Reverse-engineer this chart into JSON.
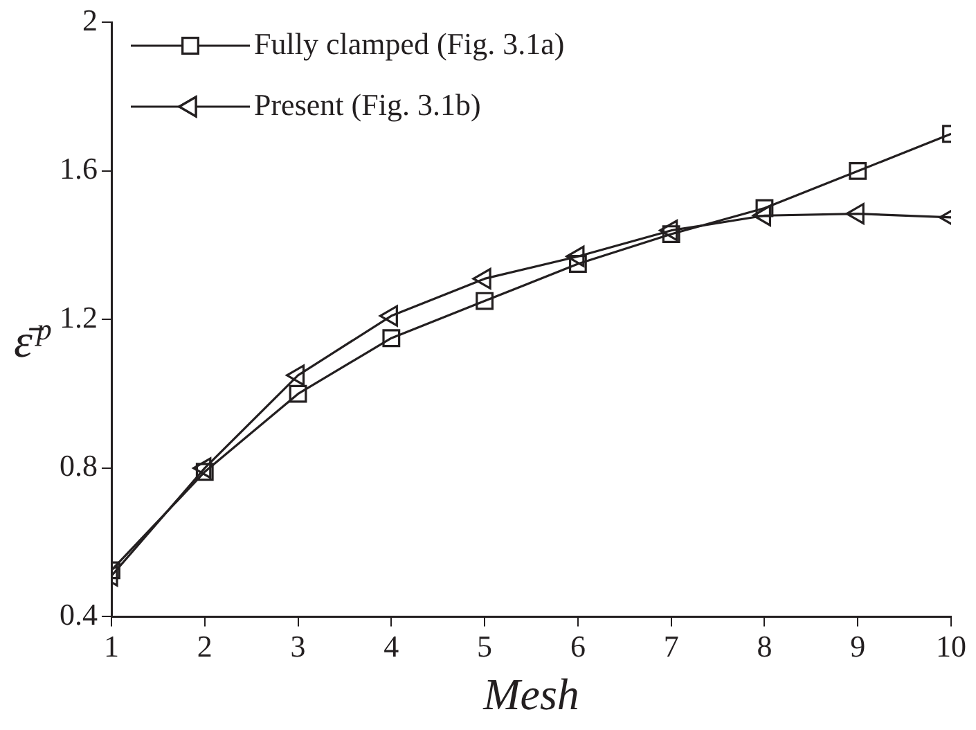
{
  "chart_data": {
    "type": "line",
    "xlabel": "Mesh",
    "ylabel": "ε̄$^{p}$",
    "x": [
      1,
      2,
      3,
      4,
      5,
      6,
      7,
      8,
      9,
      10
    ],
    "series": [
      {
        "name": "Fully clamped (Fig. 3.1a)",
        "color": "#231f20",
        "marker": "square",
        "values": [
          0.525,
          0.79,
          1.0,
          1.15,
          1.25,
          1.35,
          1.43,
          1.5,
          1.6,
          1.7
        ]
      },
      {
        "name": "Present (Fig. 3.1b)",
        "color": "#231f20",
        "marker": "triangle",
        "values": [
          0.51,
          0.8,
          1.05,
          1.21,
          1.31,
          1.37,
          1.44,
          1.48,
          1.485,
          1.475
        ]
      }
    ],
    "xlim": [
      1,
      10
    ],
    "xticks": [
      1,
      2,
      3,
      4,
      5,
      6,
      7,
      8,
      9,
      10
    ],
    "ylim": [
      0.4,
      2
    ],
    "yticks": [
      0.4,
      0.8,
      1.2,
      1.6,
      2
    ],
    "grid": false,
    "legend": "top left",
    "line_style": "solid"
  }
}
